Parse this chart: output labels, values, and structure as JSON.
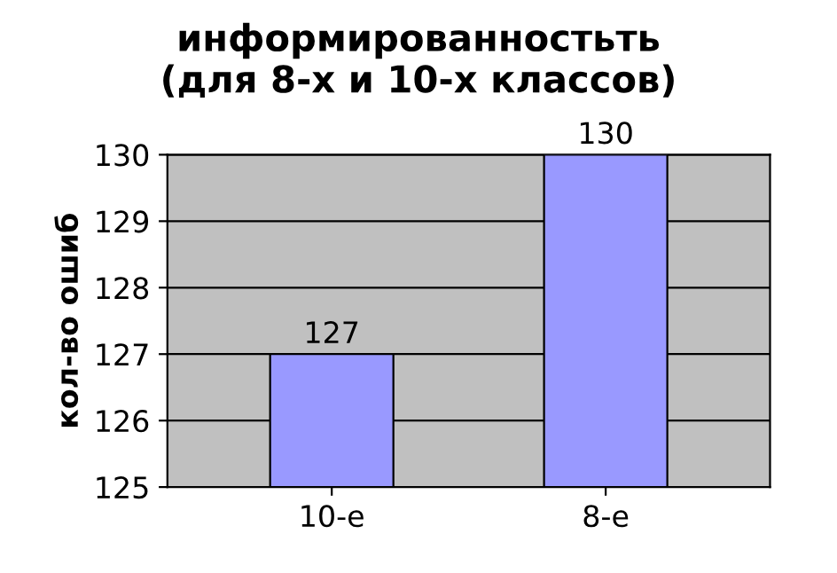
{
  "chart_data": {
    "type": "bar",
    "title": "информированностьть\n(для 8-х и 10-х классов)",
    "ylabel": "кол-во ошиб",
    "categories": [
      "10-е",
      "8-е"
    ],
    "values": [
      127,
      130
    ],
    "color": "#9999ff",
    "ylim": [
      125,
      130
    ],
    "yticks": [
      125,
      126,
      127,
      128,
      129,
      130
    ],
    "grid": "y",
    "data_labels": true
  }
}
